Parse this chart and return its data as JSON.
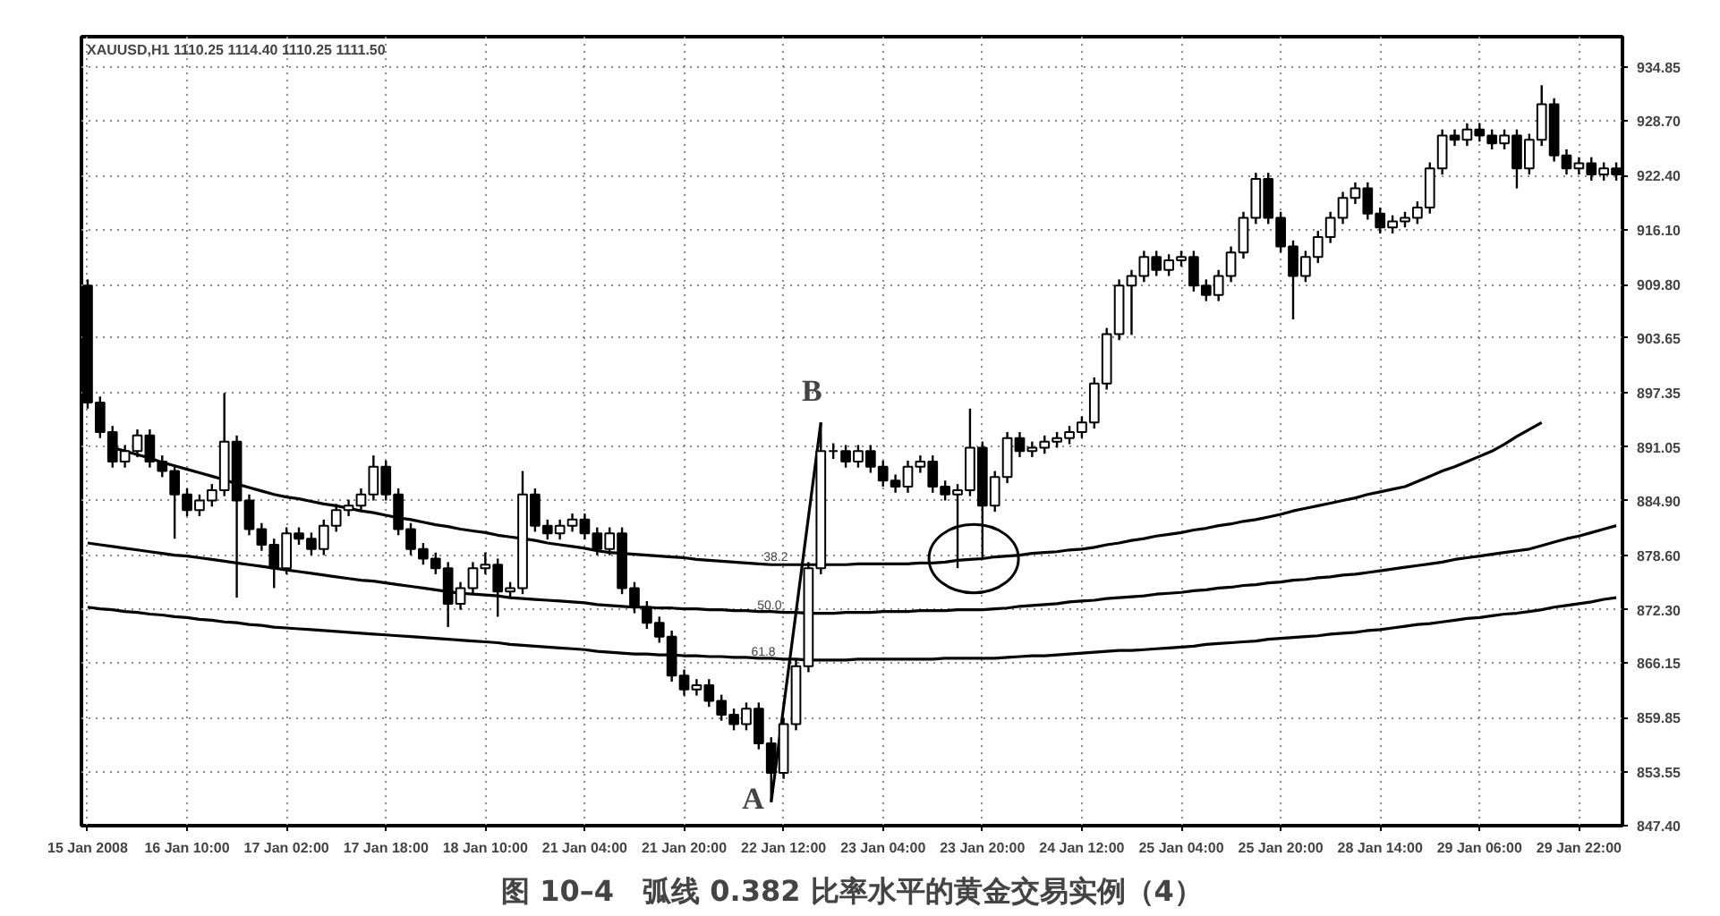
{
  "chart_data": {
    "type": "candlestick",
    "title": "图 10–4　弧线 0.382 比率水平的黄金交易实例（4）",
    "subtitle": "XAUUSD,H1  1110.25 1114.40 1110.25 1111.50",
    "categories": [
      "15 Jan 2008",
      null,
      null,
      null,
      null,
      null,
      null,
      null,
      "16 Jan 10:00",
      null,
      null,
      null,
      null,
      null,
      null,
      null,
      "17 Jan 02:00",
      null,
      null,
      null,
      null,
      null,
      null,
      null,
      "17 Jan 18:00",
      null,
      null,
      null,
      null,
      null,
      null,
      null,
      "18 Jan 10:00",
      null,
      null,
      null,
      null,
      null,
      null,
      null,
      "21 Jan 04:00",
      null,
      null,
      null,
      null,
      null,
      null,
      null,
      "21 Jan 20:00",
      null,
      null,
      null,
      null,
      null,
      null,
      null,
      "22 Jan 12:00",
      null,
      null,
      null,
      null,
      null,
      null,
      null,
      "23 Jan 04:00",
      null,
      null,
      null,
      null,
      null,
      null,
      null,
      "23 Jan 20:00",
      null,
      null,
      null,
      null,
      null,
      null,
      null,
      "24 Jan 12:00",
      null,
      null,
      null,
      null,
      null,
      null,
      null,
      "25 Jan 04:00",
      null,
      null,
      null,
      null,
      null,
      null,
      null,
      "25 Jan 20:00",
      null,
      null,
      null,
      null,
      null,
      null,
      null,
      "28 Jan 14:00",
      null,
      null,
      null,
      null,
      null,
      null,
      null,
      "29 Jan 06:00",
      null,
      null,
      null,
      null,
      null,
      null,
      null,
      "29 Jan 22:00",
      null,
      null,
      null
    ],
    "ohlc": [
      [
        909.7,
        910.4,
        895.5,
        896.2
      ],
      [
        896.2,
        896.9,
        892.1,
        892.8
      ],
      [
        892.8,
        893.5,
        888.7,
        889.4
      ],
      [
        889.4,
        891.3,
        888.7,
        890.6
      ],
      [
        890.6,
        893.1,
        889.9,
        892.4
      ],
      [
        892.4,
        893.1,
        888.7,
        889.4
      ],
      [
        889.4,
        890.1,
        887.6,
        888.3
      ],
      [
        888.3,
        889.0,
        880.5,
        885.6
      ],
      [
        885.6,
        886.3,
        883.1,
        883.8
      ],
      [
        883.8,
        885.6,
        883.1,
        884.9
      ],
      [
        884.9,
        886.8,
        884.2,
        886.1
      ],
      [
        886.1,
        897.3,
        885.4,
        891.7
      ],
      [
        891.7,
        892.4,
        873.7,
        884.9
      ],
      [
        884.9,
        885.6,
        880.9,
        881.6
      ],
      [
        881.6,
        882.3,
        879.1,
        879.8
      ],
      [
        879.8,
        880.5,
        874.8,
        877.1
      ],
      [
        877.1,
        881.8,
        876.4,
        881.1
      ],
      [
        881.1,
        881.8,
        879.8,
        880.5
      ],
      [
        880.5,
        881.2,
        878.6,
        879.3
      ],
      [
        879.3,
        882.7,
        878.6,
        882.0
      ],
      [
        882.0,
        884.5,
        881.3,
        883.8
      ],
      [
        883.8,
        885.0,
        883.1,
        884.3
      ],
      [
        884.3,
        886.3,
        883.6,
        885.6
      ],
      [
        885.6,
        890.1,
        884.9,
        888.8
      ],
      [
        888.8,
        889.5,
        884.9,
        885.6
      ],
      [
        885.6,
        886.3,
        880.9,
        881.6
      ],
      [
        881.6,
        882.3,
        878.6,
        879.3
      ],
      [
        879.3,
        880.0,
        877.5,
        878.2
      ],
      [
        878.2,
        878.9,
        876.4,
        877.1
      ],
      [
        877.1,
        877.8,
        870.3,
        873.0
      ],
      [
        873.0,
        875.5,
        872.3,
        874.8
      ],
      [
        874.8,
        877.8,
        874.1,
        877.1
      ],
      [
        877.1,
        878.9,
        876.4,
        877.5
      ],
      [
        877.5,
        878.2,
        871.5,
        874.4
      ],
      [
        874.4,
        875.5,
        873.7,
        874.8
      ],
      [
        874.8,
        888.3,
        874.1,
        885.6
      ],
      [
        885.6,
        886.3,
        881.3,
        882.0
      ],
      [
        882.0,
        882.7,
        880.4,
        881.1
      ],
      [
        881.1,
        882.7,
        880.4,
        882.0
      ],
      [
        882.0,
        883.4,
        881.3,
        882.7
      ],
      [
        882.7,
        883.4,
        880.4,
        881.1
      ],
      [
        881.1,
        881.8,
        878.6,
        879.3
      ],
      [
        879.3,
        881.8,
        878.6,
        881.1
      ],
      [
        881.1,
        881.8,
        874.1,
        874.8
      ],
      [
        874.8,
        875.5,
        871.9,
        872.6
      ],
      [
        872.6,
        873.3,
        870.1,
        870.8
      ],
      [
        870.8,
        871.5,
        868.5,
        869.2
      ],
      [
        869.2,
        869.9,
        864.0,
        864.7
      ],
      [
        864.7,
        865.4,
        862.4,
        863.1
      ],
      [
        863.1,
        864.3,
        862.4,
        863.6
      ],
      [
        863.6,
        864.3,
        861.1,
        861.8
      ],
      [
        861.8,
        862.5,
        859.5,
        860.2
      ],
      [
        860.2,
        860.9,
        858.4,
        859.1
      ],
      [
        859.1,
        861.6,
        858.4,
        860.9
      ],
      [
        860.9,
        861.6,
        856.2,
        856.9
      ],
      [
        856.9,
        857.6,
        850.1,
        853.5
      ],
      [
        853.5,
        859.8,
        852.8,
        859.1
      ],
      [
        859.1,
        866.5,
        858.4,
        865.8
      ],
      [
        865.8,
        877.8,
        865.1,
        877.1
      ],
      [
        877.1,
        893.9,
        876.4,
        890.6
      ],
      [
        890.6,
        891.5,
        889.7,
        890.6
      ],
      [
        890.6,
        891.3,
        888.7,
        889.4
      ],
      [
        889.4,
        891.3,
        888.7,
        890.6
      ],
      [
        890.6,
        891.3,
        888.1,
        888.8
      ],
      [
        888.8,
        889.5,
        886.5,
        887.2
      ],
      [
        887.2,
        887.9,
        885.8,
        886.5
      ],
      [
        886.5,
        889.5,
        885.8,
        888.8
      ],
      [
        888.8,
        890.1,
        888.1,
        889.4
      ],
      [
        889.4,
        890.1,
        885.8,
        886.5
      ],
      [
        886.5,
        887.2,
        884.9,
        885.6
      ],
      [
        885.6,
        886.8,
        877.1,
        886.1
      ],
      [
        886.1,
        895.5,
        885.4,
        891.0
      ],
      [
        891.0,
        891.7,
        878.2,
        884.3
      ],
      [
        884.3,
        888.3,
        883.6,
        887.6
      ],
      [
        887.6,
        892.8,
        886.9,
        892.1
      ],
      [
        892.1,
        892.8,
        889.9,
        890.6
      ],
      [
        890.6,
        891.7,
        889.9,
        891.0
      ],
      [
        891.0,
        892.4,
        890.3,
        891.7
      ],
      [
        891.7,
        892.8,
        891.0,
        892.1
      ],
      [
        892.1,
        893.5,
        891.4,
        892.8
      ],
      [
        892.8,
        894.6,
        892.1,
        893.9
      ],
      [
        893.9,
        899.1,
        893.2,
        898.4
      ],
      [
        898.4,
        904.8,
        897.7,
        904.1
      ],
      [
        904.1,
        910.4,
        903.4,
        909.7
      ],
      [
        909.7,
        911.5,
        904.0,
        910.8
      ],
      [
        910.8,
        913.7,
        910.1,
        913.0
      ],
      [
        913.0,
        913.7,
        910.8,
        911.5
      ],
      [
        911.5,
        913.3,
        910.8,
        912.6
      ],
      [
        912.6,
        913.7,
        911.9,
        913.0
      ],
      [
        913.0,
        913.7,
        909.0,
        909.7
      ],
      [
        909.7,
        910.4,
        907.9,
        908.6
      ],
      [
        908.6,
        911.5,
        907.9,
        910.8
      ],
      [
        910.8,
        914.2,
        910.1,
        913.5
      ],
      [
        913.5,
        918.2,
        912.8,
        917.5
      ],
      [
        917.5,
        922.7,
        916.8,
        922.0
      ],
      [
        922.0,
        922.7,
        916.8,
        917.5
      ],
      [
        917.5,
        918.2,
        913.5,
        914.2
      ],
      [
        914.2,
        914.9,
        905.8,
        910.8
      ],
      [
        910.8,
        913.7,
        910.1,
        913.0
      ],
      [
        913.0,
        916.0,
        912.3,
        915.3
      ],
      [
        915.3,
        918.2,
        914.6,
        917.5
      ],
      [
        917.5,
        920.5,
        916.8,
        919.8
      ],
      [
        919.8,
        921.6,
        919.1,
        920.9
      ],
      [
        920.9,
        921.6,
        917.3,
        918.0
      ],
      [
        918.0,
        918.7,
        915.7,
        916.4
      ],
      [
        916.4,
        917.8,
        915.7,
        917.1
      ],
      [
        917.1,
        918.2,
        916.4,
        917.5
      ],
      [
        917.5,
        919.4,
        916.8,
        918.7
      ],
      [
        918.7,
        923.9,
        918.0,
        923.2
      ],
      [
        923.2,
        927.7,
        922.5,
        927.0
      ],
      [
        927.0,
        927.7,
        925.8,
        926.5
      ],
      [
        926.5,
        928.4,
        925.8,
        927.7
      ],
      [
        927.7,
        928.4,
        926.3,
        927.0
      ],
      [
        927.0,
        927.7,
        925.4,
        926.1
      ],
      [
        926.1,
        927.7,
        925.4,
        927.0
      ],
      [
        927.0,
        927.7,
        920.9,
        923.2
      ],
      [
        923.2,
        927.2,
        922.5,
        926.5
      ],
      [
        926.5,
        932.8,
        925.8,
        930.6
      ],
      [
        930.6,
        931.3,
        924.0,
        924.7
      ],
      [
        924.7,
        925.4,
        922.5,
        923.2
      ],
      [
        923.2,
        924.5,
        922.5,
        923.8
      ],
      [
        923.8,
        924.5,
        921.8,
        922.5
      ],
      [
        922.5,
        923.9,
        921.8,
        923.2
      ],
      [
        923.2,
        923.9,
        921.8,
        922.5
      ]
    ],
    "color": "#000000",
    "series": [
      {
        "type": "line",
        "color": "#000000",
        "values": [
          null,
          null,
          891.0,
          890.6,
          890.2,
          889.8,
          889.3,
          888.9,
          888.5,
          888.1,
          887.7,
          887.3,
          886.8,
          886.4,
          886.0,
          885.6,
          885.3,
          885.1,
          884.8,
          884.5,
          884.3,
          884.0,
          883.7,
          883.5,
          883.2,
          882.9,
          882.7,
          882.4,
          882.1,
          881.9,
          881.6,
          881.4,
          881.2,
          880.9,
          880.7,
          880.5,
          880.3,
          880.0,
          879.8,
          879.6,
          879.4,
          879.1,
          878.9,
          878.8,
          878.7,
          878.6,
          878.5,
          878.4,
          878.3,
          878.1,
          878.0,
          877.9,
          877.8,
          877.7,
          877.6,
          877.5,
          877.5,
          877.5,
          877.5,
          877.5,
          877.5,
          877.5,
          877.6,
          877.6,
          877.6,
          877.6,
          877.6,
          877.7,
          877.7,
          877.8,
          878.0,
          878.1,
          878.2,
          878.4,
          878.5,
          878.6,
          878.8,
          878.9,
          879.0,
          879.2,
          879.3,
          879.5,
          879.8,
          880.0,
          880.3,
          880.5,
          880.8,
          881.0,
          881.2,
          881.5,
          881.7,
          882.0,
          882.2,
          882.5,
          882.7,
          883.0,
          883.3,
          883.7,
          884.0,
          884.3,
          884.6,
          884.9,
          885.2,
          885.6,
          885.9,
          886.2,
          886.5,
          887.1,
          887.7,
          888.3,
          888.8,
          889.4,
          890.0,
          890.6,
          891.4,
          892.3,
          893.1,
          893.9,
          null,
          null,
          null,
          null,
          null,
          null
        ]
      },
      {
        "type": "line",
        "color": "#000000",
        "values": [
          880.0,
          879.8,
          879.6,
          879.4,
          879.2,
          879.0,
          878.8,
          878.6,
          878.5,
          878.3,
          878.1,
          877.9,
          877.7,
          877.5,
          877.3,
          877.1,
          876.9,
          876.7,
          876.5,
          876.3,
          876.1,
          875.9,
          875.7,
          875.6,
          875.4,
          875.2,
          875.0,
          874.8,
          874.6,
          874.4,
          874.2,
          874.1,
          874.0,
          873.9,
          873.7,
          873.6,
          873.5,
          873.4,
          873.3,
          873.2,
          873.1,
          872.9,
          872.8,
          872.7,
          872.6,
          872.6,
          872.5,
          872.5,
          872.4,
          872.4,
          872.3,
          872.3,
          872.2,
          872.2,
          872.1,
          872.1,
          872.0,
          872.0,
          871.9,
          871.9,
          871.9,
          872.0,
          872.0,
          872.0,
          872.1,
          872.1,
          872.1,
          872.2,
          872.2,
          872.2,
          872.3,
          872.3,
          872.3,
          872.4,
          872.5,
          872.7,
          872.8,
          872.9,
          873.0,
          873.2,
          873.3,
          873.4,
          873.6,
          873.7,
          873.8,
          873.9,
          874.1,
          874.2,
          874.3,
          874.5,
          874.6,
          874.8,
          874.9,
          875.1,
          875.2,
          875.4,
          875.5,
          875.7,
          875.8,
          876.0,
          876.1,
          876.3,
          876.4,
          876.6,
          876.8,
          877.0,
          877.2,
          877.4,
          877.6,
          877.8,
          878.1,
          878.3,
          878.5,
          878.7,
          878.9,
          879.1,
          879.3,
          879.7,
          880.1,
          880.5,
          880.8,
          881.2,
          881.6,
          882.0
        ]
      },
      {
        "type": "line",
        "color": "#000000",
        "values": [
          872.6,
          872.4,
          872.3,
          872.1,
          872.0,
          871.8,
          871.7,
          871.5,
          871.4,
          871.2,
          871.1,
          870.9,
          870.8,
          870.6,
          870.5,
          870.3,
          870.2,
          870.1,
          870.0,
          869.9,
          869.8,
          869.7,
          869.6,
          869.5,
          869.4,
          869.3,
          869.2,
          869.1,
          869.0,
          868.9,
          868.8,
          868.7,
          868.6,
          868.5,
          868.3,
          868.2,
          868.1,
          868.0,
          867.9,
          867.8,
          867.7,
          867.5,
          867.4,
          867.3,
          867.2,
          867.2,
          867.1,
          867.1,
          867.0,
          867.0,
          866.9,
          866.9,
          866.8,
          866.8,
          866.7,
          866.7,
          866.6,
          866.6,
          866.5,
          866.5,
          866.5,
          866.5,
          866.6,
          866.6,
          866.6,
          866.6,
          866.6,
          866.6,
          866.6,
          866.7,
          866.7,
          866.7,
          866.7,
          866.7,
          866.8,
          866.9,
          867.0,
          867.0,
          867.1,
          867.2,
          867.3,
          867.4,
          867.5,
          867.6,
          867.6,
          867.7,
          867.8,
          867.9,
          868.0,
          868.1,
          868.3,
          868.4,
          868.5,
          868.6,
          868.7,
          868.9,
          869.0,
          869.1,
          869.2,
          869.3,
          869.5,
          869.6,
          869.7,
          869.9,
          870.0,
          870.2,
          870.4,
          870.6,
          870.7,
          870.9,
          871.1,
          871.3,
          871.4,
          871.6,
          871.8,
          871.9,
          872.1,
          872.3,
          872.6,
          872.8,
          873.0,
          873.2,
          873.5,
          873.7
        ]
      },
      {
        "type": "line",
        "color": "#000000",
        "values": [
          null,
          null,
          null,
          null,
          null,
          null,
          null,
          null,
          null,
          null,
          null,
          null,
          null,
          null,
          null,
          null,
          null,
          null,
          null,
          null,
          null,
          null,
          null,
          null,
          null,
          null,
          null,
          null,
          null,
          null,
          null,
          null,
          null,
          null,
          null,
          null,
          null,
          null,
          null,
          null,
          null,
          null,
          null,
          null,
          null,
          null,
          null,
          null,
          null,
          null,
          null,
          null,
          null,
          null,
          null,
          850.1,
          861.1,
          872.0,
          883.0,
          893.9,
          null,
          null,
          null,
          null,
          null,
          null,
          null,
          null,
          null,
          null,
          null,
          null,
          null,
          null,
          null,
          null,
          null,
          null,
          null,
          null,
          null,
          null,
          null,
          null,
          null,
          null,
          null,
          null,
          null,
          null,
          null,
          null,
          null,
          null,
          null,
          null,
          null,
          null,
          null,
          null,
          null,
          null,
          null,
          null,
          null,
          null,
          null,
          null,
          null,
          null,
          null,
          null,
          null,
          null,
          null,
          null,
          null,
          null,
          null,
          null,
          null,
          null,
          null,
          null
        ]
      }
    ],
    "line_style": "solid",
    "annotations": [
      "A",
      "B",
      "38.2",
      "50.0",
      "61.8"
    ],
    "ylim": [
      847.4,
      938.4
    ],
    "yticks": [
      {
        "value": 847.4,
        "label": "847.40"
      },
      853.55,
      859.85,
      866.15,
      {
        "value": 872.3,
        "label": "872.30"
      },
      {
        "value": 878.6,
        "label": "878.60"
      },
      {
        "value": 884.9,
        "label": "884.90"
      },
      891.05,
      897.35,
      903.65,
      {
        "value": 909.8,
        "label": "909.80"
      },
      {
        "value": 916.1,
        "label": "916.10"
      },
      {
        "value": 922.4,
        "label": "922.40"
      },
      {
        "value": 928.7,
        "label": "928.70"
      },
      934.85
    ],
    "grid": true
  }
}
